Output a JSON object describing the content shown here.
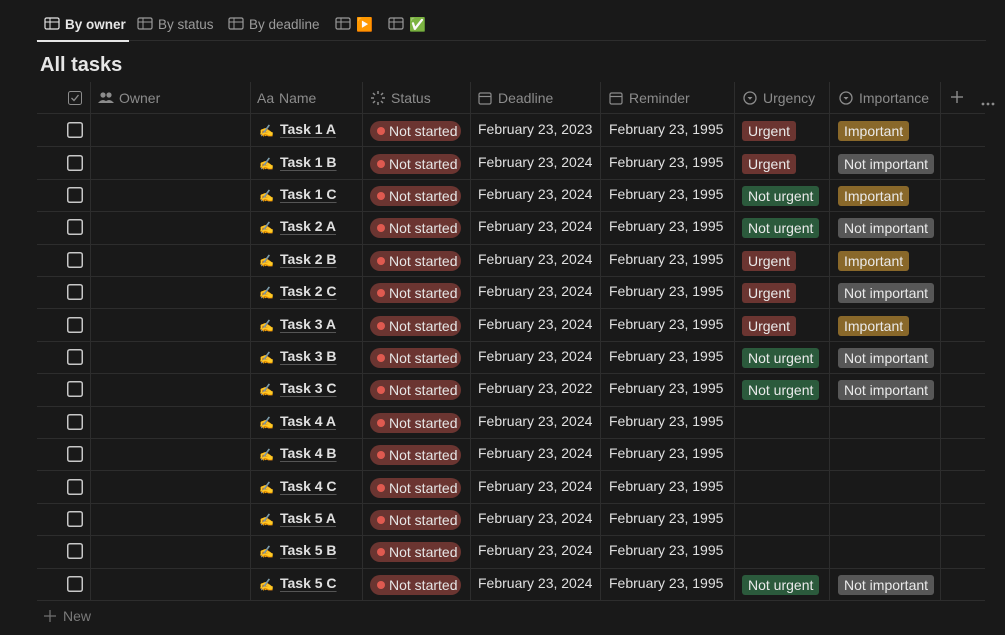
{
  "tabs": [
    "By owner",
    "By status",
    "By deadline",
    "▶️",
    "✅"
  ],
  "title": "All tasks",
  "columns": {
    "owner": "Owner",
    "name_icon": "Aa",
    "name": "Name",
    "status": "Status",
    "deadline": "Deadline",
    "reminder": "Reminder",
    "urgency": "Urgency",
    "importance": "Importance"
  },
  "row_icon": "✍️",
  "tag_colors": {
    "Not started": "#6b3531",
    "Urgent": "#6b3531",
    "Not urgent": "#2b5a3c",
    "Important": "#89682a",
    "Not important": "#575757"
  },
  "rows": [
    {
      "name": "Task 1 A",
      "status": "Not started",
      "deadline": "February 23, 2023",
      "reminder": "February 23, 1995",
      "urgency": "Urgent",
      "importance": "Important"
    },
    {
      "name": "Task 1 B",
      "status": "Not started",
      "deadline": "February 23, 2024",
      "reminder": "February 23, 1995",
      "urgency": "Urgent",
      "importance": "Not important"
    },
    {
      "name": "Task 1 C",
      "status": "Not started",
      "deadline": "February 23, 2024",
      "reminder": "February 23, 1995",
      "urgency": "Not urgent",
      "importance": "Important"
    },
    {
      "name": "Task 2 A",
      "status": "Not started",
      "deadline": "February 23, 2024",
      "reminder": "February 23, 1995",
      "urgency": "Not urgent",
      "importance": "Not important"
    },
    {
      "name": "Task 2 B",
      "status": "Not started",
      "deadline": "February 23, 2024",
      "reminder": "February 23, 1995",
      "urgency": "Urgent",
      "importance": "Important"
    },
    {
      "name": "Task 2 C",
      "status": "Not started",
      "deadline": "February 23, 2024",
      "reminder": "February 23, 1995",
      "urgency": "Urgent",
      "importance": "Not important"
    },
    {
      "name": "Task 3 A",
      "status": "Not started",
      "deadline": "February 23, 2024",
      "reminder": "February 23, 1995",
      "urgency": "Urgent",
      "importance": "Important"
    },
    {
      "name": "Task 3 B",
      "status": "Not started",
      "deadline": "February 23, 2024",
      "reminder": "February 23, 1995",
      "urgency": "Not urgent",
      "importance": "Not important"
    },
    {
      "name": "Task 3 C",
      "status": "Not started",
      "deadline": "February 23, 2022",
      "reminder": "February 23, 1995",
      "urgency": "Not urgent",
      "importance": "Not important"
    },
    {
      "name": "Task 4 A",
      "status": "Not started",
      "deadline": "February 23, 2024",
      "reminder": "February 23, 1995",
      "urgency": null,
      "importance": null
    },
    {
      "name": "Task 4 B",
      "status": "Not started",
      "deadline": "February 23, 2024",
      "reminder": "February 23, 1995",
      "urgency": null,
      "importance": null
    },
    {
      "name": "Task 4 C",
      "status": "Not started",
      "deadline": "February 23, 2024",
      "reminder": "February 23, 1995",
      "urgency": null,
      "importance": null
    },
    {
      "name": "Task 5 A",
      "status": "Not started",
      "deadline": "February 23, 2024",
      "reminder": "February 23, 1995",
      "urgency": null,
      "importance": null
    },
    {
      "name": "Task 5 B",
      "status": "Not started",
      "deadline": "February 23, 2024",
      "reminder": "February 23, 1995",
      "urgency": null,
      "importance": null
    },
    {
      "name": "Task 5 C",
      "status": "Not started",
      "deadline": "February 23, 2024",
      "reminder": "February 23, 1995",
      "urgency": "Not urgent",
      "importance": "Not important"
    }
  ],
  "new": "New"
}
